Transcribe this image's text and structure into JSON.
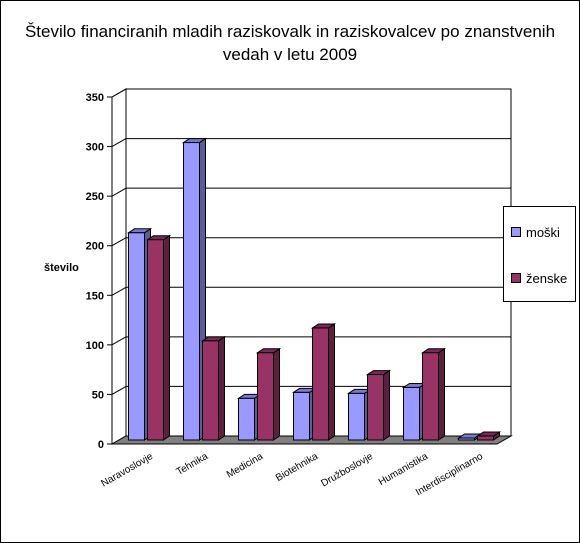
{
  "chart_data": {
    "type": "bar",
    "title": "Število financiranih mladih raziskovalk in raziskovalcev po znanstvenih vedah v letu 2009",
    "ylabel": "število",
    "xlabel": "",
    "ylim": [
      0,
      350
    ],
    "yticks": [
      0,
      50,
      100,
      150,
      200,
      250,
      300,
      350
    ],
    "grid": true,
    "legend_position": "right",
    "categories": [
      "Naravoslovje",
      "Tehnika",
      "Medicina",
      "Biotehnika",
      "Družboslovje",
      "Humanistika",
      "Interdisciplinarno"
    ],
    "series": [
      {
        "name": "moški",
        "color": "#9999ff",
        "values": [
          209,
          300,
          42,
          48,
          47,
          53,
          2
        ]
      },
      {
        "name": "ženske",
        "color": "#993366",
        "values": [
          202,
          100,
          88,
          113,
          66,
          88,
          4
        ]
      }
    ]
  }
}
